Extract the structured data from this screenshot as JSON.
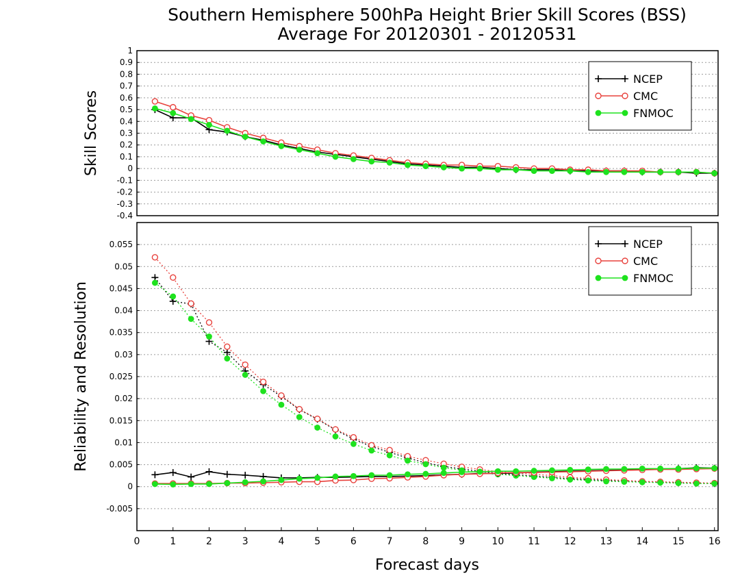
{
  "title_line1": "Southern Hemisphere 500hPa Height Brier Skill Scores (BSS)",
  "title_line2": "Average For 20120301 - 20120531",
  "xlabel": "Forecast days",
  "x_ticks": [
    "0",
    "1",
    "2",
    "3",
    "4",
    "5",
    "6",
    "7",
    "8",
    "9",
    "10",
    "11",
    "12",
    "13",
    "14",
    "15",
    "16"
  ],
  "legend": [
    "NCEP",
    "CMC",
    "FNMOC"
  ],
  "colors": {
    "NCEP": "#000000",
    "CMC": "#e8413c",
    "FNMOC": "#1ee21e"
  },
  "chart_data": [
    {
      "type": "line",
      "ylabel": "Skill Scores",
      "xlim": [
        0,
        16.1
      ],
      "ylim": [
        -0.4,
        1
      ],
      "y_ticks": [
        "1",
        "0.9",
        "0.8",
        "0.7",
        "0.6",
        "0.5",
        "0.4",
        "0.3",
        "0.2",
        "0.1",
        "0",
        "-0.1",
        "-0.2",
        "-0.3",
        "-0.4"
      ],
      "grid": true,
      "legend_position": "top-right",
      "x": [
        0.5,
        1,
        1.5,
        2,
        2.5,
        3,
        3.5,
        4,
        4.5,
        5,
        5.5,
        6,
        6.5,
        7,
        7.5,
        8,
        8.5,
        9,
        9.5,
        10,
        10.5,
        11,
        11.5,
        12,
        12.5,
        13,
        13.5,
        14,
        14.5,
        15,
        15.5,
        16
      ],
      "series": [
        {
          "name": "NCEP",
          "values": [
            0.5,
            0.43,
            0.43,
            0.33,
            0.31,
            0.27,
            0.24,
            0.2,
            0.17,
            0.14,
            0.12,
            0.1,
            0.08,
            0.06,
            0.04,
            0.03,
            0.02,
            0.01,
            0.01,
            0.0,
            -0.01,
            -0.01,
            -0.01,
            -0.02,
            -0.02,
            -0.02,
            -0.02,
            -0.03,
            -0.03,
            -0.03,
            -0.04,
            -0.04
          ]
        },
        {
          "name": "CMC",
          "values": [
            0.57,
            0.52,
            0.45,
            0.41,
            0.35,
            0.3,
            0.26,
            0.22,
            0.19,
            0.16,
            0.13,
            0.11,
            0.09,
            0.07,
            0.05,
            0.04,
            0.03,
            0.03,
            0.02,
            0.02,
            0.01,
            0.0,
            0.0,
            -0.01,
            -0.01,
            -0.02,
            -0.02,
            -0.02,
            -0.03,
            -0.03,
            -0.03,
            -0.04
          ]
        },
        {
          "name": "FNMOC",
          "values": [
            0.51,
            0.47,
            0.42,
            0.37,
            0.32,
            0.27,
            0.23,
            0.19,
            0.16,
            0.13,
            0.1,
            0.08,
            0.06,
            0.05,
            0.03,
            0.02,
            0.01,
            0.0,
            0.0,
            -0.01,
            -0.01,
            -0.02,
            -0.02,
            -0.02,
            -0.03,
            -0.03,
            -0.03,
            -0.03,
            -0.03,
            -0.03,
            -0.03,
            -0.04
          ]
        }
      ]
    },
    {
      "type": "line",
      "ylabel": "Reliability and Resolution",
      "xlim": [
        0,
        16.1
      ],
      "ylim": [
        -0.01,
        0.06
      ],
      "y_ticks": [
        "0.055",
        "0.05",
        "0.045",
        "0.04",
        "0.035",
        "0.03",
        "0.025",
        "0.02",
        "0.015",
        "0.01",
        "0.005",
        "0",
        "-0.005"
      ],
      "grid": true,
      "legend_position": "top-right",
      "x": [
        0.5,
        1,
        1.5,
        2,
        2.5,
        3,
        3.5,
        4,
        4.5,
        5,
        5.5,
        6,
        6.5,
        7,
        7.5,
        8,
        8.5,
        9,
        9.5,
        10,
        10.5,
        11,
        11.5,
        12,
        12.5,
        13,
        13.5,
        14,
        14.5,
        15,
        15.5,
        16
      ],
      "series": [
        {
          "name": "NCEP",
          "line": "resolution",
          "values": [
            0.0475,
            0.0421,
            0.0415,
            0.033,
            0.0305,
            0.0263,
            0.0232,
            0.0205,
            0.0175,
            0.0153,
            0.0129,
            0.0108,
            0.0091,
            0.0078,
            0.0065,
            0.0054,
            0.0046,
            0.004,
            0.0035,
            0.003,
            0.0027,
            0.0024,
            0.0021,
            0.0018,
            0.0016,
            0.0014,
            0.0013,
            0.0011,
            0.001,
            0.0009,
            0.0008,
            0.0007
          ]
        },
        {
          "name": "CMC",
          "line": "resolution",
          "values": [
            0.0521,
            0.0475,
            0.0416,
            0.0373,
            0.0318,
            0.0277,
            0.0238,
            0.0207,
            0.0176,
            0.0154,
            0.013,
            0.0112,
            0.0094,
            0.0083,
            0.0069,
            0.006,
            0.0052,
            0.0045,
            0.0039,
            0.0034,
            0.0031,
            0.0028,
            0.0025,
            0.0021,
            0.0019,
            0.0016,
            0.0014,
            0.0012,
            0.0011,
            0.001,
            0.0009,
            0.0008
          ]
        },
        {
          "name": "FNMOC",
          "line": "resolution",
          "values": [
            0.0463,
            0.0432,
            0.0381,
            0.0341,
            0.0291,
            0.0254,
            0.0217,
            0.0186,
            0.0158,
            0.0134,
            0.0114,
            0.0097,
            0.0082,
            0.0071,
            0.0059,
            0.0051,
            0.0043,
            0.0037,
            0.0032,
            0.0028,
            0.0025,
            0.0022,
            0.0019,
            0.0016,
            0.0014,
            0.0012,
            0.0011,
            0.001,
            0.0009,
            0.0008,
            0.0007,
            0.0007
          ]
        },
        {
          "name": "NCEP",
          "line": "reliability",
          "values": [
            0.0027,
            0.0032,
            0.0022,
            0.0034,
            0.0028,
            0.0026,
            0.0023,
            0.002,
            0.002,
            0.0021,
            0.0021,
            0.0022,
            0.0023,
            0.0023,
            0.0024,
            0.0025,
            0.0027,
            0.0028,
            0.003,
            0.003,
            0.0031,
            0.0033,
            0.0034,
            0.0035,
            0.0036,
            0.0037,
            0.0038,
            0.0039,
            0.004,
            0.0041,
            0.0043,
            0.0042
          ]
        },
        {
          "name": "CMC",
          "line": "reliability",
          "values": [
            0.0007,
            0.0007,
            0.0007,
            0.0007,
            0.0008,
            0.0008,
            0.0009,
            0.001,
            0.0011,
            0.0011,
            0.0014,
            0.0015,
            0.0018,
            0.0019,
            0.0021,
            0.0023,
            0.0026,
            0.0028,
            0.0029,
            0.0031,
            0.0032,
            0.0032,
            0.0033,
            0.0034,
            0.0035,
            0.0036,
            0.0037,
            0.0038,
            0.0039,
            0.0039,
            0.004,
            0.0041
          ]
        },
        {
          "name": "FNMOC",
          "line": "reliability",
          "values": [
            0.0006,
            0.0005,
            0.0006,
            0.0006,
            0.0008,
            0.001,
            0.0012,
            0.0015,
            0.0018,
            0.002,
            0.0023,
            0.0024,
            0.0026,
            0.0026,
            0.0028,
            0.0029,
            0.0031,
            0.0033,
            0.0034,
            0.0035,
            0.0035,
            0.0036,
            0.0037,
            0.0038,
            0.0039,
            0.004,
            0.004,
            0.0041,
            0.0041,
            0.0041,
            0.0042,
            0.0042
          ]
        }
      ]
    }
  ]
}
